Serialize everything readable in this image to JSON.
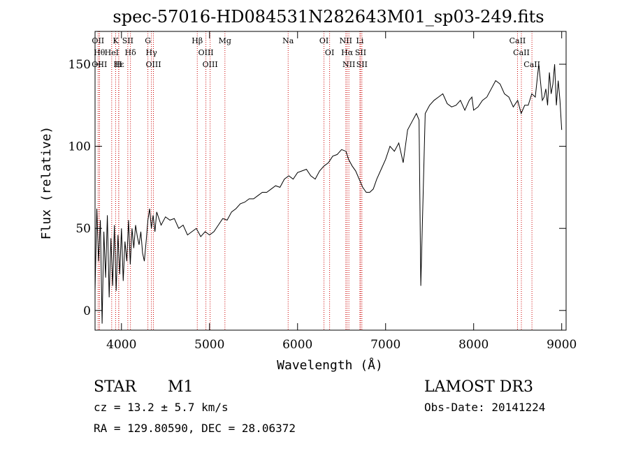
{
  "chart_data": {
    "type": "line",
    "title": "spec-57016-HD084531N282643M01_sp03-249.fits",
    "xlabel": "Wavelength (Å)",
    "ylabel": "Flux (relative)",
    "xlim": [
      3700,
      9050
    ],
    "ylim": [
      -12,
      170
    ],
    "x_ticks": [
      4000,
      5000,
      6000,
      7000,
      8000,
      9000
    ],
    "y_ticks": [
      0,
      50,
      100,
      150
    ],
    "grid": false,
    "legend": "none",
    "line_color": "#000000",
    "marker_color": "#cc0000",
    "series": [
      {
        "x": [
          3700,
          3720,
          3740,
          3760,
          3780,
          3800,
          3820,
          3840,
          3860,
          3880,
          3900,
          3920,
          3940,
          3960,
          3980,
          4000,
          4020,
          4040,
          4060,
          4080,
          4100,
          4120,
          4140,
          4160,
          4180,
          4200,
          4220,
          4240,
          4260,
          4280,
          4300,
          4320,
          4340,
          4360,
          4380,
          4400,
          4450,
          4500,
          4550,
          4600,
          4650,
          4700,
          4750,
          4800,
          4850,
          4900,
          4950,
          5000,
          5050,
          5100,
          5150,
          5200,
          5250,
          5300,
          5350,
          5400,
          5450,
          5500,
          5550,
          5600,
          5650,
          5700,
          5750,
          5800,
          5850,
          5900,
          5950,
          6000,
          6050,
          6100,
          6150,
          6200,
          6250,
          6300,
          6350,
          6400,
          6450,
          6500,
          6550,
          6580,
          6620,
          6660,
          6700,
          6740,
          6780,
          6820,
          6860,
          6900,
          6950,
          7000,
          7050,
          7100,
          7150,
          7200,
          7250,
          7300,
          7350,
          7380,
          7400,
          7450,
          7500,
          7550,
          7600,
          7650,
          7700,
          7750,
          7800,
          7850,
          7900,
          7950,
          7980,
          8000,
          8050,
          8100,
          8150,
          8200,
          8250,
          8300,
          8350,
          8400,
          8450,
          8500,
          8540,
          8580,
          8620,
          8660,
          8700,
          8740,
          8780,
          8800,
          8820,
          8840,
          8860,
          8880,
          8900,
          8920,
          8940,
          8960,
          8980,
          9000
        ],
        "y": [
          12,
          62,
          30,
          55,
          -8,
          48,
          20,
          58,
          8,
          44,
          15,
          52,
          12,
          46,
          22,
          50,
          18,
          42,
          30,
          55,
          28,
          50,
          38,
          52,
          45,
          40,
          48,
          35,
          30,
          42,
          55,
          62,
          50,
          58,
          48,
          60,
          52,
          57,
          55,
          56,
          50,
          52,
          46,
          48,
          50,
          45,
          48,
          46,
          48,
          52,
          56,
          55,
          60,
          62,
          65,
          66,
          68,
          68,
          70,
          72,
          72,
          74,
          76,
          75,
          80,
          82,
          80,
          84,
          85,
          86,
          82,
          80,
          85,
          88,
          90,
          94,
          95,
          98,
          97,
          92,
          88,
          85,
          80,
          75,
          72,
          72,
          74,
          80,
          86,
          92,
          100,
          97,
          102,
          90,
          110,
          115,
          120,
          116,
          15,
          120,
          125,
          128,
          130,
          132,
          126,
          124,
          125,
          128,
          122,
          128,
          130,
          122,
          124,
          128,
          130,
          135,
          140,
          138,
          132,
          130,
          124,
          128,
          120,
          125,
          125,
          132,
          130,
          150,
          128,
          130,
          135,
          125,
          145,
          132,
          138,
          150,
          125,
          140,
          128,
          110
        ]
      }
    ],
    "line_markers": [
      {
        "x": 3750,
        "label": "Hθ"
      },
      {
        "x": 3734,
        "label": "OII"
      },
      {
        "x": 3750,
        "label": "OIII"
      },
      {
        "x": 3889,
        "label": "HeI"
      },
      {
        "x": 3934,
        "label": "K"
      },
      {
        "x": 3970,
        "label": "Hε"
      },
      {
        "x": 3968,
        "label": "H"
      },
      {
        "x": 4072,
        "label": "SII"
      },
      {
        "x": 4102,
        "label": "Hδ"
      },
      {
        "x": 4300,
        "label": "G"
      },
      {
        "x": 4340,
        "label": "Hγ"
      },
      {
        "x": 4363,
        "label": "OIII"
      },
      {
        "x": 4861,
        "label": "Hβ"
      },
      {
        "x": 4959,
        "label": "OIII"
      },
      {
        "x": 5007,
        "label": "OIII"
      },
      {
        "x": 5175,
        "label": "Mg"
      },
      {
        "x": 5893,
        "label": "Na"
      },
      {
        "x": 6300,
        "label": "OI"
      },
      {
        "x": 6364,
        "label": "OI"
      },
      {
        "x": 6548,
        "label": "NII"
      },
      {
        "x": 6563,
        "label": "Hα"
      },
      {
        "x": 6583,
        "label": "NII"
      },
      {
        "x": 6708,
        "label": "Li"
      },
      {
        "x": 6716,
        "label": "SII"
      },
      {
        "x": 6731,
        "label": "SII"
      },
      {
        "x": 8498,
        "label": "CaII"
      },
      {
        "x": 8542,
        "label": "CaII"
      },
      {
        "x": 8662,
        "label": "CaII"
      }
    ]
  },
  "info": {
    "class": "STAR",
    "subclass": "M1",
    "survey": "LAMOST DR3",
    "cz": "cz = 13.2 ± 5.7 km/s",
    "obs_date": "Obs-Date: 20141224",
    "radec": "RA = 129.80590, DEC =  28.06372"
  }
}
